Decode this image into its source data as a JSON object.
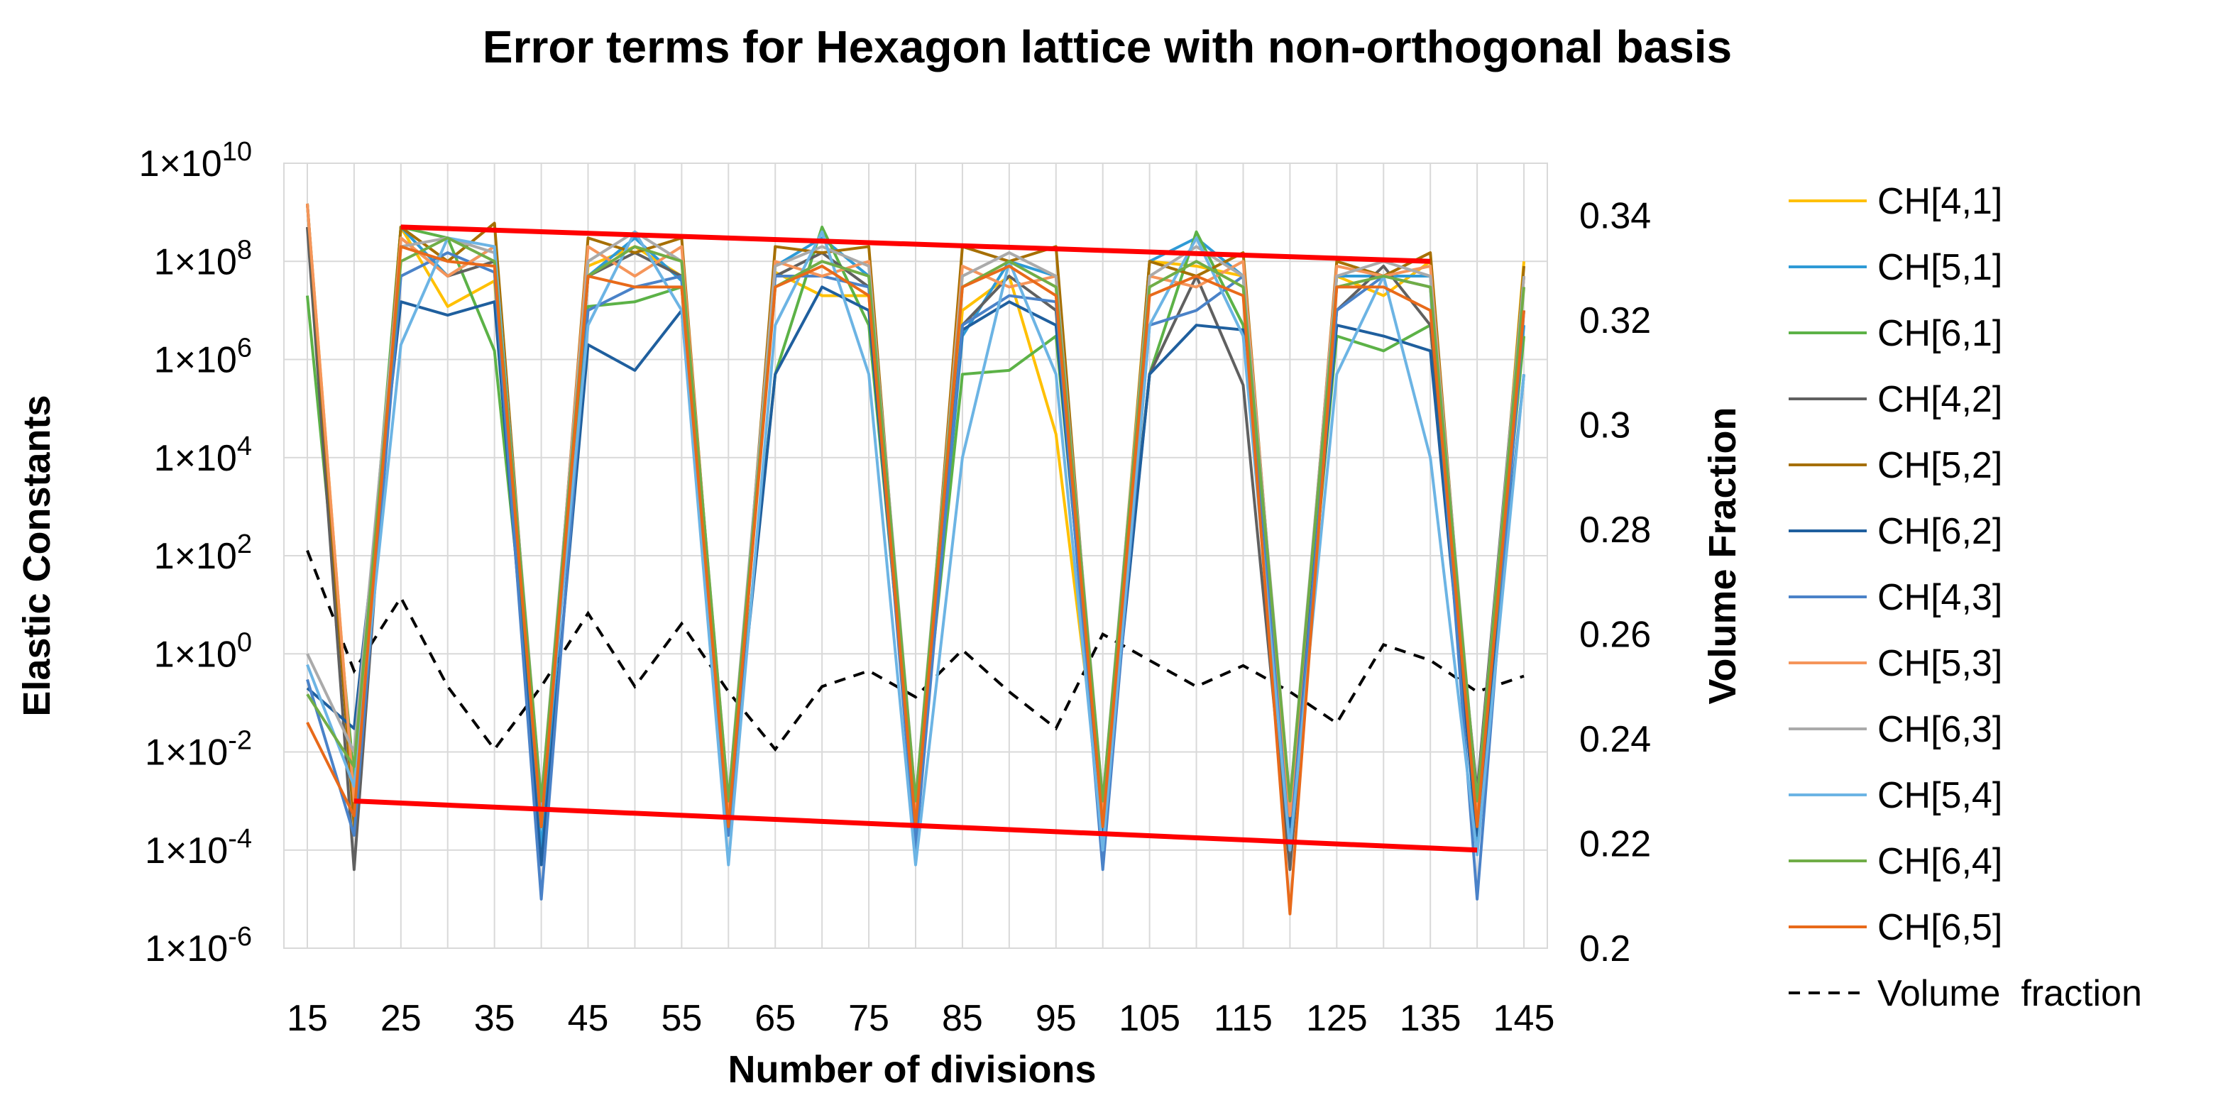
{
  "chart_data": {
    "type": "line",
    "title": "Error terms for Hexagon lattice with non-orthogonal basis",
    "xlabel": "Number of divisions",
    "ylabel": "Elastic Constants",
    "y2label": "Volume Fraction",
    "yscale": "log",
    "ylim": [
      1e-06,
      10000000000.0
    ],
    "y2lim": [
      0.2,
      0.35
    ],
    "grid": true,
    "legend_position": "right",
    "x": [
      15,
      20,
      25,
      30,
      35,
      40,
      45,
      50,
      55,
      60,
      65,
      70,
      75,
      80,
      85,
      90,
      95,
      100,
      105,
      110,
      115,
      120,
      125,
      130,
      135,
      140,
      145
    ],
    "x_tick_labels": [
      "15",
      "25",
      "35",
      "45",
      "55",
      "65",
      "75",
      "85",
      "95",
      "105",
      "115",
      "125",
      "135",
      "145"
    ],
    "y_tick_labels": [
      {
        "base": "1×10",
        "exp": "10"
      },
      {
        "base": "1×10",
        "exp": "8"
      },
      {
        "base": "1×10",
        "exp": "6"
      },
      {
        "base": "1×10",
        "exp": "4"
      },
      {
        "base": "1×10",
        "exp": "2"
      },
      {
        "base": "1×10",
        "exp": "0"
      },
      {
        "base": "1×10",
        "exp": "-2"
      },
      {
        "base": "1×10",
        "exp": "-4"
      },
      {
        "base": "1×10",
        "exp": "-6"
      }
    ],
    "y2_tick_labels": [
      "0.34",
      "0.32",
      "0.3",
      "0.28",
      "0.26",
      "0.24",
      "0.22",
      "0.2"
    ],
    "series": [
      {
        "name": "CH[4,1]",
        "color": "#FFC000",
        "values": [
          1500000000.0,
          0.001,
          500000000.0,
          12000000.0,
          40000000.0,
          0.0003,
          80000000.0,
          200000000.0,
          50000000.0,
          0.0005,
          60000000.0,
          20000000.0,
          20000000.0,
          0.0005,
          10000000.0,
          50000000.0,
          30000.0,
          0.0005,
          100000000.0,
          80000000.0,
          50000000.0,
          0.0003,
          50000000.0,
          20000000.0,
          100000000.0,
          0.0003,
          100000000.0
        ]
      },
      {
        "name": "CH[5,1]",
        "color": "#2E9AD6",
        "values": [
          1500000000.0,
          0.0005,
          500000000.0,
          50000000.0,
          200000000.0,
          0.0001,
          50000000.0,
          300000000.0,
          40000000.0,
          0.0002,
          80000000.0,
          300000000.0,
          50000000.0,
          0.0002,
          3000000.0,
          100000000.0,
          50000000.0,
          0.0001,
          100000000.0,
          300000000.0,
          50000000.0,
          0.0002,
          50000000.0,
          50000000.0,
          50000000.0,
          0.0001,
          5000000.0
        ]
      },
      {
        "name": "CH[6,1]",
        "color": "#5CB247",
        "values": [
          20000000.0,
          0.003,
          500000000.0,
          300000000.0,
          1500000.0,
          0.001,
          12000000.0,
          15000000.0,
          30000000.0,
          0.0005,
          500000.0,
          500000000.0,
          5000000.0,
          0.0005,
          500000.0,
          600000.0,
          3000000.0,
          0.0005,
          500000.0,
          400000000.0,
          5000000.0,
          0.0003,
          3000000.0,
          1500000.0,
          5000000.0,
          0.0005,
          3000000.0
        ]
      },
      {
        "name": "CH[4,2]",
        "color": "#606060",
        "values": [
          500000000.0,
          4e-05,
          300000000.0,
          50000000.0,
          100000000.0,
          0.0003,
          50000000.0,
          150000000.0,
          50000000.0,
          0.0003,
          50000000.0,
          150000000.0,
          30000000.0,
          0.0003,
          5000000.0,
          50000000.0,
          10000000.0,
          0.0003,
          500000.0,
          50000000.0,
          300000.0,
          4e-05,
          10000000.0,
          80000000.0,
          5000000.0,
          0.0015,
          50000000.0
        ]
      },
      {
        "name": "CH[5,2]",
        "color": "#A66F00",
        "values": [
          1500000000.0,
          0.0003,
          500000000.0,
          100000000.0,
          600000000.0,
          0.0003,
          300000000.0,
          150000000.0,
          300000000.0,
          0.0003,
          200000000.0,
          150000000.0,
          200000000.0,
          0.0003,
          200000000.0,
          100000000.0,
          200000000.0,
          0.0003,
          100000000.0,
          50000000.0,
          150000000.0,
          0.0003,
          100000000.0,
          50000000.0,
          150000000.0,
          0.0003,
          80000000.0
        ]
      },
      {
        "name": "CH[6,2]",
        "color": "#1F5F9E",
        "values": [
          0.2,
          0.03,
          15000000.0,
          8000000.0,
          15000000.0,
          5e-05,
          2000000.0,
          600000.0,
          10000000.0,
          0.0003,
          500000.0,
          30000000.0,
          10000000.0,
          0.0003,
          4000000.0,
          15000000.0,
          5000000.0,
          0.0002,
          500000.0,
          5000000.0,
          4000000.0,
          0.0003,
          5000000.0,
          3000000.0,
          1500000.0,
          0.0002,
          500000.0
        ]
      },
      {
        "name": "CH[4,3]",
        "color": "#4A82C8",
        "values": [
          0.3,
          0.0002,
          50000000.0,
          150000000.0,
          60000000.0,
          1e-05,
          10000000.0,
          30000000.0,
          50000000.0,
          0.0002,
          50000000.0,
          50000000.0,
          30000000.0,
          0.0001,
          5000000.0,
          20000000.0,
          15000000.0,
          4e-05,
          5000000.0,
          10000000.0,
          50000000.0,
          0.0001,
          10000000.0,
          50000000.0,
          30000000.0,
          1e-05,
          10000000.0
        ]
      },
      {
        "name": "CH[5,3]",
        "color": "#F5955A",
        "values": [
          1500000000.0,
          0.001,
          300000000.0,
          50000000.0,
          200000000.0,
          0.0005,
          200000000.0,
          50000000.0,
          200000000.0,
          0.0005,
          100000000.0,
          50000000.0,
          100000000.0,
          0.0005,
          80000000.0,
          30000000.0,
          50000000.0,
          0.0005,
          50000000.0,
          30000000.0,
          100000000.0,
          0.0005,
          80000000.0,
          50000000.0,
          80000000.0,
          0.0005,
          50000000.0
        ]
      },
      {
        "name": "CH[6,3]",
        "color": "#AAAAAA",
        "values": [
          1.0,
          0.01,
          200000000.0,
          300000000.0,
          150000000.0,
          0.001,
          100000000.0,
          400000000.0,
          100000000.0,
          0.001,
          80000000.0,
          200000000.0,
          80000000.0,
          0.001,
          50000000.0,
          150000000.0,
          50000000.0,
          0.001,
          50000000.0,
          200000000.0,
          50000000.0,
          0.001,
          50000000.0,
          100000000.0,
          50000000.0,
          0.001,
          50000000.0
        ]
      },
      {
        "name": "CH[5,4]",
        "color": "#6CB4E4",
        "values": [
          0.6,
          0.002,
          2000000.0,
          300000000.0,
          200000000.0,
          0.0005,
          5000000.0,
          400000000.0,
          10000000.0,
          5e-05,
          5000000.0,
          400000000.0,
          500000.0,
          5e-05,
          10000.0,
          100000000.0,
          500000.0,
          0.0001,
          5000000.0,
          300000000.0,
          3000000.0,
          0.0001,
          500000.0,
          50000000.0,
          10000.0,
          8e-05,
          500000.0
        ]
      },
      {
        "name": "CH[6,4]",
        "color": "#70AD47",
        "values": [
          0.15,
          0.005,
          100000000.0,
          300000000.0,
          100000000.0,
          0.001,
          50000000.0,
          200000000.0,
          100000000.0,
          0.001,
          30000000.0,
          100000000.0,
          50000000.0,
          0.001,
          30000000.0,
          100000000.0,
          30000000.0,
          0.001,
          30000000.0,
          100000000.0,
          30000000.0,
          0.001,
          30000000.0,
          50000000.0,
          30000000.0,
          0.001,
          30000000.0
        ]
      },
      {
        "name": "CH[6,5]",
        "color": "#E86A1A",
        "values": [
          0.04,
          0.0005,
          200000000.0,
          100000000.0,
          80000000.0,
          0.0003,
          50000000.0,
          30000000.0,
          30000000.0,
          0.0003,
          30000000.0,
          80000000.0,
          20000000.0,
          0.0003,
          30000000.0,
          80000000.0,
          20000000.0,
          0.0003,
          20000000.0,
          50000000.0,
          20000000.0,
          5e-06,
          30000000.0,
          30000000.0,
          10000000.0,
          0.0003,
          10000000.0
        ]
      }
    ],
    "volume_fraction": {
      "name": "Volume  fraction",
      "color": "#000000",
      "axis": "secondary",
      "values": [
        0.276,
        0.253,
        0.267,
        0.25,
        0.238,
        0.25,
        0.264,
        0.25,
        0.262,
        0.249,
        0.238,
        0.25,
        0.253,
        0.248,
        0.257,
        0.249,
        0.242,
        0.26,
        0.255,
        0.25,
        0.254,
        0.249,
        0.243,
        0.258,
        0.255,
        0.249,
        0.252
      ]
    },
    "bounds": {
      "color": "#FF0000",
      "upper": {
        "x": [
          25,
          135
        ],
        "y": [
          500000000.0,
          100000000.0
        ]
      },
      "lower": {
        "x": [
          20,
          140
        ],
        "y": [
          0.001,
          0.0001
        ]
      }
    }
  }
}
